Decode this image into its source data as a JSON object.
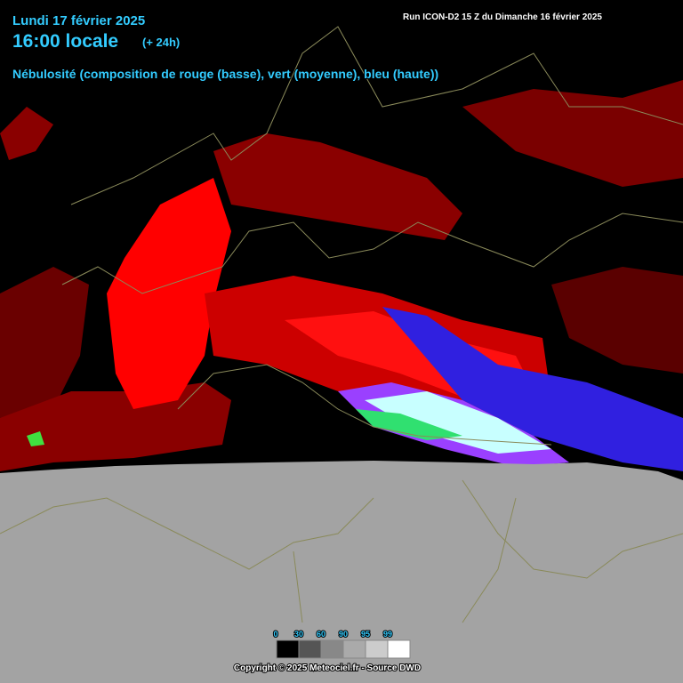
{
  "header": {
    "date": "Lundi 17 février 2025",
    "time": "16:00 locale",
    "offset": "(+ 24h)",
    "run": "Run ICON-D2 15 Z du Dimanche 16 février 2025",
    "subtitle": "Nébulosité (composition de rouge (basse), vert (moyenne), bleu (haute))"
  },
  "legend": {
    "ticks": [
      "0",
      "30",
      "60",
      "90",
      "95",
      "99"
    ]
  },
  "footer": {
    "copyright": "Copyright © 2025 Meteociel.fr - Source DWD"
  }
}
